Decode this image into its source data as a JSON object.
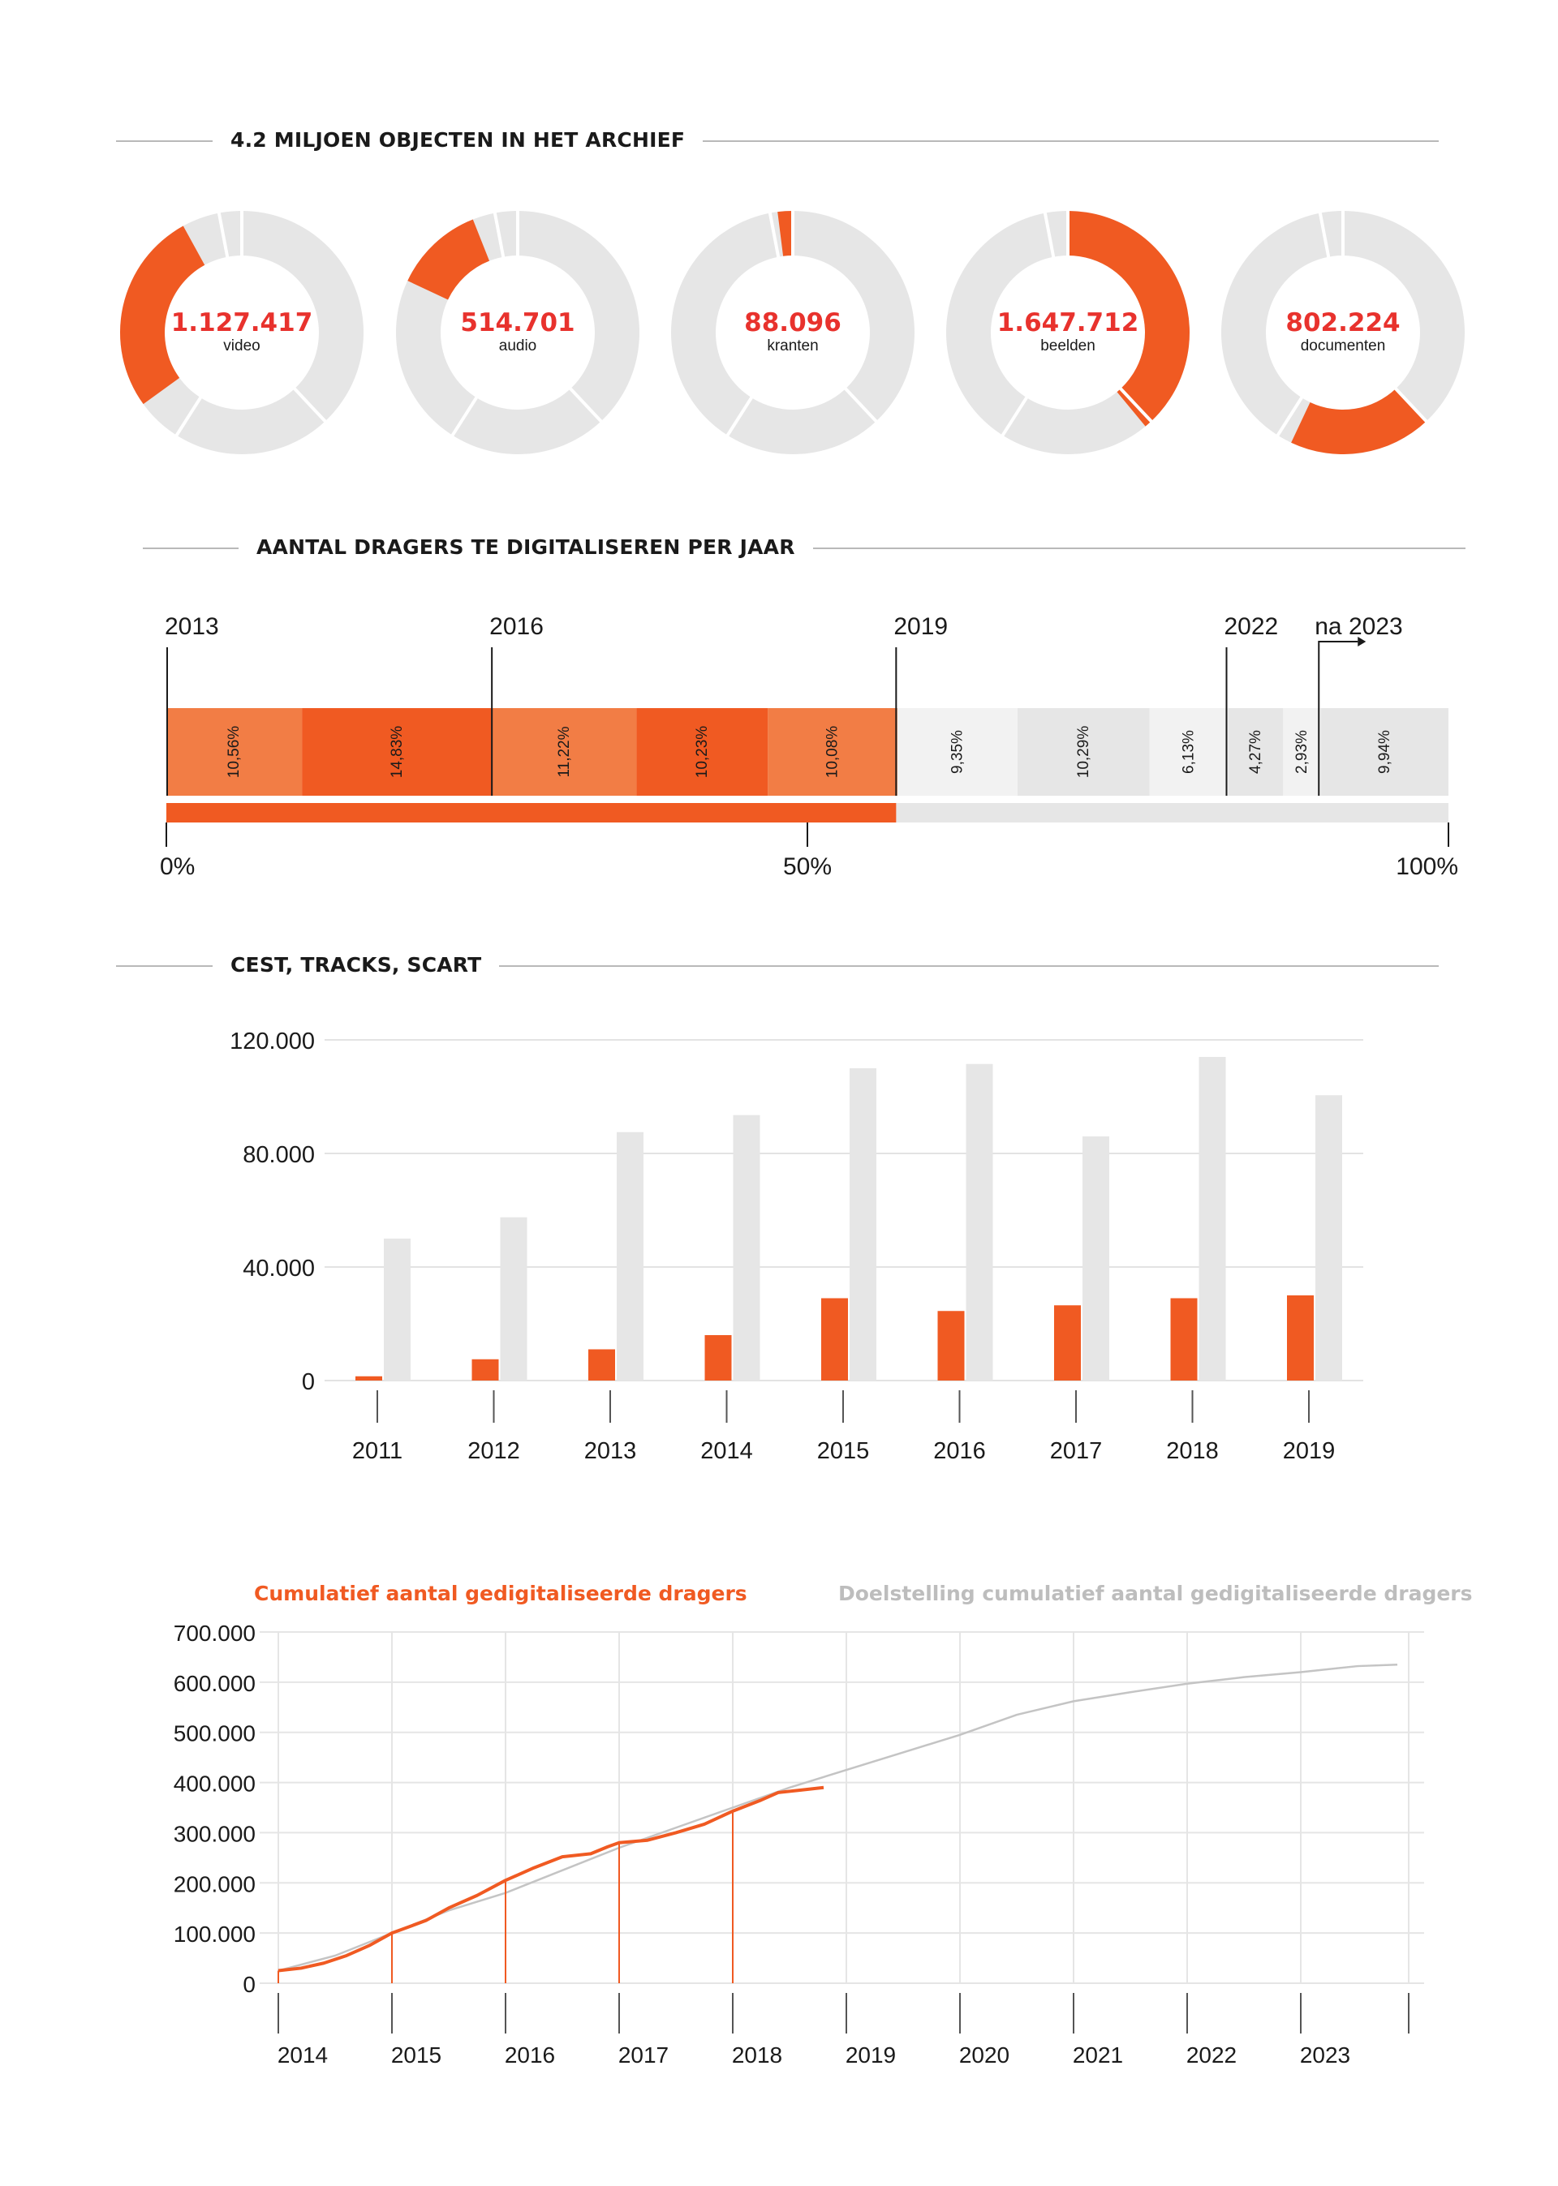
{
  "sections": {
    "donuts_title": "4.2 MILJOEN OBJECTEN IN HET ARCHIEF",
    "bar_title": "AANTAL DRAGERS TE DIGITALISEREN PER JAAR",
    "cest_title": "CEST, TRACKS, SCART"
  },
  "colors": {
    "orange": "#f05a22",
    "orange_light": "#f27d45",
    "grey": "#e6e6e6",
    "grey_light": "#f2f2f2",
    "red_text": "#e8322d",
    "target_line": "#c4c4c4"
  },
  "chart_data": [
    {
      "type": "pie",
      "variant": "donut-set",
      "slices_total": 4.2,
      "items": [
        {
          "value": "1.127.417",
          "label": "video",
          "fraction": 0.27
        },
        {
          "value": "514.701",
          "label": "audio",
          "fraction": 0.12
        },
        {
          "value": "88.096",
          "label": "kranten",
          "fraction": 0.02
        },
        {
          "value": "1.647.712",
          "label": "beelden",
          "fraction": 0.39
        },
        {
          "value": "802.224",
          "label": "documenten",
          "fraction": 0.19
        }
      ]
    },
    {
      "type": "bar",
      "variant": "stacked-100",
      "segments": [
        {
          "label": "10,56%",
          "value": 10.56,
          "status": "done"
        },
        {
          "label": "14,83%",
          "value": 14.83,
          "status": "done"
        },
        {
          "label": "11,22%",
          "value": 11.22,
          "status": "done"
        },
        {
          "label": "10,23%",
          "value": 10.23,
          "status": "done"
        },
        {
          "label": "10,08%",
          "value": 10.08,
          "status": "done"
        },
        {
          "label": "9,35%",
          "value": 9.35,
          "status": "todo"
        },
        {
          "label": "10,29%",
          "value": 10.29,
          "status": "todo"
        },
        {
          "label": "6,13%",
          "value": 6.13,
          "status": "todo"
        },
        {
          "label": "4,27%",
          "value": 4.27,
          "status": "todo"
        },
        {
          "label": "2,93%",
          "value": 2.93,
          "status": "todo"
        },
        {
          "label": "9,94%",
          "value": 9.94,
          "status": "todo"
        }
      ],
      "markers": [
        {
          "label": "2013",
          "at": 0
        },
        {
          "label": "2016",
          "at": 25.39
        },
        {
          "label": "2019",
          "at": 56.92
        },
        {
          "label": "2022",
          "at": 82.69
        },
        {
          "label": "na 2023",
          "at": 89.89
        }
      ],
      "progress": 56.92,
      "axis_ticks": [
        {
          "label": "0%",
          "at": 0
        },
        {
          "label": "50%",
          "at": 50
        },
        {
          "label": "100%",
          "at": 100
        }
      ]
    },
    {
      "type": "bar",
      "categories": [
        "2011",
        "2012",
        "2013",
        "2014",
        "2015",
        "2016",
        "2017",
        "2018",
        "2019"
      ],
      "series": [
        {
          "values": [
            1500,
            7500,
            11000,
            16000,
            29000,
            24500,
            26500,
            29000,
            30000
          ]
        },
        {
          "values": [
            50000,
            57500,
            87500,
            93500,
            110000,
            111500,
            86000,
            114000,
            100500
          ]
        }
      ],
      "ylim": [
        0,
        120000
      ],
      "yticks": [
        "0",
        "40.000",
        "80.000",
        "120.000"
      ],
      "grid": true
    },
    {
      "type": "line",
      "series": [
        {
          "name": "Cumulatief aantal gedigitaliseerde dragers",
          "x": [
            2014.0,
            2014.2,
            2014.4,
            2014.6,
            2014.8,
            2015.0,
            2015.3,
            2015.5,
            2015.75,
            2016.0,
            2016.25,
            2016.5,
            2016.75,
            2016.9,
            2017.0,
            2017.25,
            2017.5,
            2017.75,
            2018.0,
            2018.25,
            2018.4,
            2018.6,
            2018.8
          ],
          "y": [
            25000,
            30000,
            40000,
            55000,
            75000,
            100000,
            125000,
            150000,
            175000,
            205000,
            230000,
            252000,
            258000,
            272000,
            280000,
            285000,
            300000,
            317000,
            343000,
            365000,
            380000,
            385000,
            390000
          ]
        },
        {
          "name": "Doelstelling cumulatief aantal gedigitaliseerde dragers",
          "x": [
            2014.0,
            2014.5,
            2015.0,
            2015.5,
            2016.0,
            2016.5,
            2017.0,
            2017.5,
            2018.0,
            2018.5,
            2019.0,
            2019.5,
            2020.0,
            2020.5,
            2021.0,
            2021.5,
            2022.0,
            2022.5,
            2023.0,
            2023.5,
            2023.85
          ],
          "y": [
            25000,
            55000,
            100000,
            145000,
            180000,
            225000,
            270000,
            310000,
            350000,
            390000,
            425000,
            460000,
            495000,
            535000,
            562000,
            580000,
            597000,
            610000,
            620000,
            632000,
            635000
          ]
        }
      ],
      "categories": [
        "2014",
        "2015",
        "2016",
        "2017",
        "2018",
        "2019",
        "2020",
        "2021",
        "2022",
        "2023"
      ],
      "ylim": [
        0,
        700000
      ],
      "yticks": [
        "0",
        "100.000",
        "200.000",
        "300.000",
        "400.000",
        "500.000",
        "600.000",
        "700.000"
      ],
      "grid": true
    }
  ]
}
